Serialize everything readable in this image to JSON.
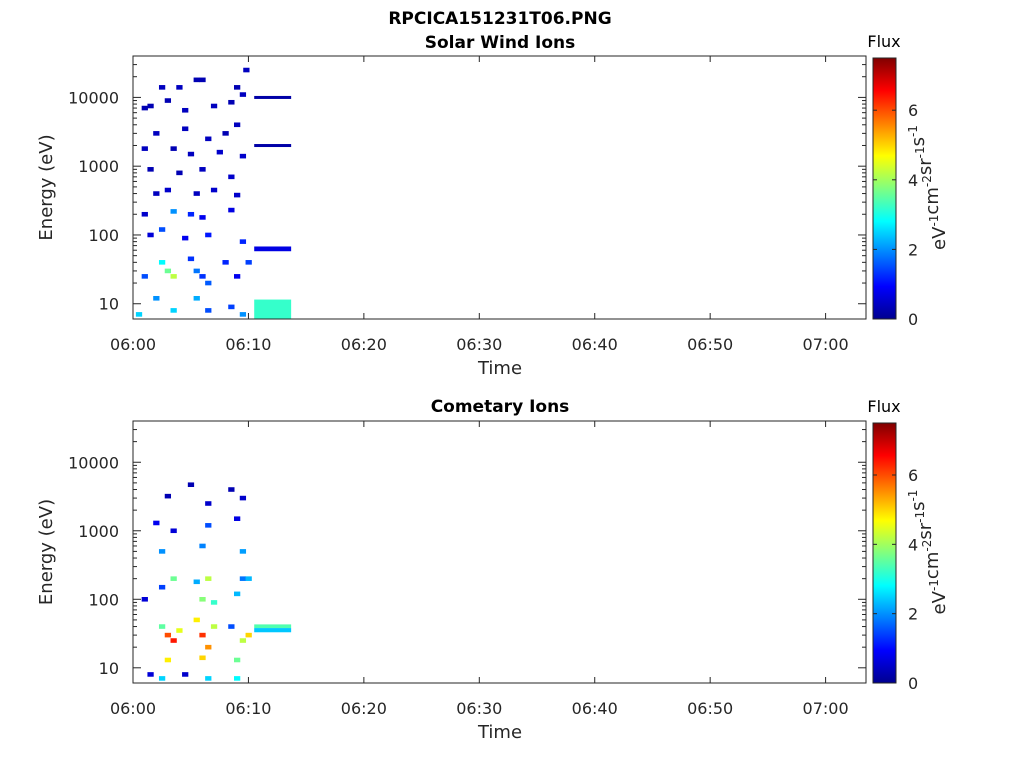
{
  "figure": {
    "title": "RPCICA151231T06.PNG",
    "colors": {
      "axis": "#262626",
      "colormap": "jet"
    }
  },
  "chart_data": [
    {
      "type": "heatmap",
      "title": "Solar Wind Ions",
      "xlabel": "Time",
      "ylabel": "Energy (eV)",
      "x_ticks": [
        "06:00",
        "06:10",
        "06:20",
        "06:30",
        "06:40",
        "06:50",
        "07:00"
      ],
      "x_range_minutes": [
        0,
        63.5
      ],
      "y_scale": "log",
      "y_ticks": [
        "10",
        "100",
        "1000",
        "10000"
      ],
      "y_range": [
        6,
        40000
      ],
      "colorbar": {
        "title": "Flux",
        "label": "eV-1cm-2sr-1s-1",
        "ticks": [
          "0",
          "2",
          "4",
          "6"
        ],
        "range": [
          0,
          7.5
        ]
      },
      "cells": [
        {
          "t": 1.0,
          "e": 7000,
          "v": 0.3
        },
        {
          "t": 1.5,
          "e": 7500,
          "v": 0.3
        },
        {
          "t": 2.5,
          "e": 14000,
          "v": 0.4
        },
        {
          "t": 3.0,
          "e": 9000,
          "v": 0.3
        },
        {
          "t": 4.0,
          "e": 14000,
          "v": 0.4
        },
        {
          "t": 4.5,
          "e": 6500,
          "v": 0.4
        },
        {
          "t": 5.5,
          "e": 18000,
          "v": 0.3
        },
        {
          "t": 6.0,
          "e": 18000,
          "v": 0.3
        },
        {
          "t": 7.0,
          "e": 7500,
          "v": 0.4
        },
        {
          "t": 8.5,
          "e": 8500,
          "v": 0.3
        },
        {
          "t": 9.0,
          "e": 14000,
          "v": 0.3
        },
        {
          "t": 9.5,
          "e": 11000,
          "v": 0.4
        },
        {
          "t": 9.8,
          "e": 25000,
          "v": 0.4
        },
        {
          "t": 2.0,
          "e": 3000,
          "v": 0.4
        },
        {
          "t": 4.5,
          "e": 3500,
          "v": 0.4
        },
        {
          "t": 6.5,
          "e": 2500,
          "v": 0.4
        },
        {
          "t": 8.0,
          "e": 3000,
          "v": 0.3
        },
        {
          "t": 9.0,
          "e": 4000,
          "v": 0.4
        },
        {
          "t": 1.0,
          "e": 1800,
          "v": 0.4
        },
        {
          "t": 3.5,
          "e": 1800,
          "v": 0.3
        },
        {
          "t": 5.0,
          "e": 1500,
          "v": 0.4
        },
        {
          "t": 7.5,
          "e": 1600,
          "v": 0.5
        },
        {
          "t": 9.5,
          "e": 1400,
          "v": 0.5
        },
        {
          "t": 1.5,
          "e": 900,
          "v": 0.3
        },
        {
          "t": 4.0,
          "e": 800,
          "v": 0.3
        },
        {
          "t": 6.0,
          "e": 900,
          "v": 0.4
        },
        {
          "t": 8.5,
          "e": 700,
          "v": 0.5
        },
        {
          "t": 2.0,
          "e": 400,
          "v": 0.4
        },
        {
          "t": 3.0,
          "e": 450,
          "v": 0.5
        },
        {
          "t": 5.5,
          "e": 400,
          "v": 0.4
        },
        {
          "t": 7.0,
          "e": 450,
          "v": 0.5
        },
        {
          "t": 9.0,
          "e": 380,
          "v": 0.5
        },
        {
          "t": 1.0,
          "e": 200,
          "v": 0.5
        },
        {
          "t": 3.5,
          "e": 220,
          "v": 2.0
        },
        {
          "t": 5.0,
          "e": 200,
          "v": 1.2
        },
        {
          "t": 6.0,
          "e": 180,
          "v": 0.8
        },
        {
          "t": 8.5,
          "e": 230,
          "v": 0.7
        },
        {
          "t": 1.5,
          "e": 100,
          "v": 0.6
        },
        {
          "t": 2.5,
          "e": 120,
          "v": 1.5
        },
        {
          "t": 4.5,
          "e": 90,
          "v": 0.8
        },
        {
          "t": 6.5,
          "e": 100,
          "v": 1.1
        },
        {
          "t": 9.5,
          "e": 80,
          "v": 1.2
        },
        {
          "t": 1.0,
          "e": 25,
          "v": 1.5
        },
        {
          "t": 2.5,
          "e": 40,
          "v": 2.8
        },
        {
          "t": 3.0,
          "e": 30,
          "v": 3.6
        },
        {
          "t": 3.5,
          "e": 25,
          "v": 4.2
        },
        {
          "t": 5.0,
          "e": 45,
          "v": 1.3
        },
        {
          "t": 5.5,
          "e": 30,
          "v": 1.8
        },
        {
          "t": 6.0,
          "e": 25,
          "v": 1.3
        },
        {
          "t": 6.5,
          "e": 20,
          "v": 1.6
        },
        {
          "t": 8.0,
          "e": 40,
          "v": 1.2
        },
        {
          "t": 9.0,
          "e": 25,
          "v": 0.8
        },
        {
          "t": 10.0,
          "e": 40,
          "v": 1.4
        },
        {
          "t": 2.0,
          "e": 12,
          "v": 2.0
        },
        {
          "t": 3.5,
          "e": 8,
          "v": 2.5
        },
        {
          "t": 5.5,
          "e": 12,
          "v": 2.2
        },
        {
          "t": 6.5,
          "e": 8,
          "v": 1.5
        },
        {
          "t": 8.5,
          "e": 9,
          "v": 1.4
        },
        {
          "t": 0.5,
          "e": 7,
          "v": 2.5
        },
        {
          "t": 9.5,
          "e": 7,
          "v": 2.0
        }
      ],
      "bands": [
        {
          "t0": 10.5,
          "t1": 13.7,
          "e0": 9500,
          "e1": 10500,
          "v": 0.2
        },
        {
          "t0": 10.5,
          "t1": 13.7,
          "e0": 1900,
          "e1": 2100,
          "v": 0.2
        },
        {
          "t0": 10.5,
          "t1": 13.7,
          "e0": 58,
          "e1": 68,
          "v": 0.7
        },
        {
          "t0": 10.5,
          "t1": 13.7,
          "e0": 6,
          "e1": 11.5,
          "v": 3.2
        }
      ]
    },
    {
      "type": "heatmap",
      "title": "Cometary Ions",
      "xlabel": "Time",
      "ylabel": "Energy (eV)",
      "x_ticks": [
        "06:00",
        "06:10",
        "06:20",
        "06:30",
        "06:40",
        "06:50",
        "07:00"
      ],
      "x_range_minutes": [
        0,
        63.5
      ],
      "y_scale": "log",
      "y_ticks": [
        "10",
        "100",
        "1000",
        "10000"
      ],
      "y_range": [
        6,
        40000
      ],
      "colorbar": {
        "title": "Flux",
        "label": "eV-1cm-2sr-1s-1",
        "ticks": [
          "0",
          "2",
          "4",
          "6"
        ],
        "range": [
          0,
          7.5
        ]
      },
      "cells": [
        {
          "t": 3.0,
          "e": 3200,
          "v": 0.3
        },
        {
          "t": 5.0,
          "e": 4700,
          "v": 0.3
        },
        {
          "t": 6.5,
          "e": 2500,
          "v": 0.5
        },
        {
          "t": 8.5,
          "e": 4000,
          "v": 0.3
        },
        {
          "t": 9.5,
          "e": 3000,
          "v": 0.5
        },
        {
          "t": 2.0,
          "e": 1300,
          "v": 0.8
        },
        {
          "t": 3.5,
          "e": 1000,
          "v": 0.6
        },
        {
          "t": 6.5,
          "e": 1200,
          "v": 1.5
        },
        {
          "t": 9.0,
          "e": 1500,
          "v": 0.7
        },
        {
          "t": 2.5,
          "e": 500,
          "v": 2.0
        },
        {
          "t": 6.0,
          "e": 600,
          "v": 1.9
        },
        {
          "t": 9.5,
          "e": 500,
          "v": 2.1
        },
        {
          "t": 1.0,
          "e": 100,
          "v": 0.6
        },
        {
          "t": 2.5,
          "e": 150,
          "v": 1.4
        },
        {
          "t": 3.5,
          "e": 200,
          "v": 3.6
        },
        {
          "t": 5.5,
          "e": 180,
          "v": 2.2
        },
        {
          "t": 6.0,
          "e": 100,
          "v": 3.8
        },
        {
          "t": 6.5,
          "e": 200,
          "v": 4.2
        },
        {
          "t": 7.0,
          "e": 90,
          "v": 3.2
        },
        {
          "t": 9.0,
          "e": 120,
          "v": 2.3
        },
        {
          "t": 9.5,
          "e": 200,
          "v": 1.8
        },
        {
          "t": 10.0,
          "e": 200,
          "v": 2.3
        },
        {
          "t": 2.5,
          "e": 40,
          "v": 3.5
        },
        {
          "t": 3.0,
          "e": 30,
          "v": 6.0
        },
        {
          "t": 3.5,
          "e": 25,
          "v": 6.4
        },
        {
          "t": 4.0,
          "e": 35,
          "v": 4.5
        },
        {
          "t": 5.5,
          "e": 50,
          "v": 4.8
        },
        {
          "t": 6.0,
          "e": 30,
          "v": 6.2
        },
        {
          "t": 6.5,
          "e": 20,
          "v": 5.5
        },
        {
          "t": 7.0,
          "e": 40,
          "v": 4.2
        },
        {
          "t": 8.5,
          "e": 40,
          "v": 1.5
        },
        {
          "t": 9.5,
          "e": 25,
          "v": 4.2
        },
        {
          "t": 10.0,
          "e": 30,
          "v": 5.0
        },
        {
          "t": 3.0,
          "e": 13,
          "v": 4.8
        },
        {
          "t": 6.0,
          "e": 14,
          "v": 5.0
        },
        {
          "t": 9.0,
          "e": 13,
          "v": 3.6
        },
        {
          "t": 1.5,
          "e": 8,
          "v": 0.6
        },
        {
          "t": 2.5,
          "e": 7,
          "v": 2.5
        },
        {
          "t": 4.5,
          "e": 8,
          "v": 0.5
        },
        {
          "t": 6.5,
          "e": 7,
          "v": 2.5
        },
        {
          "t": 9.0,
          "e": 7,
          "v": 2.8
        }
      ],
      "bands": [
        {
          "t0": 10.5,
          "t1": 13.7,
          "e0": 38,
          "e1": 43,
          "v": 3.4
        },
        {
          "t0": 10.5,
          "t1": 13.7,
          "e0": 33,
          "e1": 38,
          "v": 2.4
        }
      ]
    }
  ]
}
